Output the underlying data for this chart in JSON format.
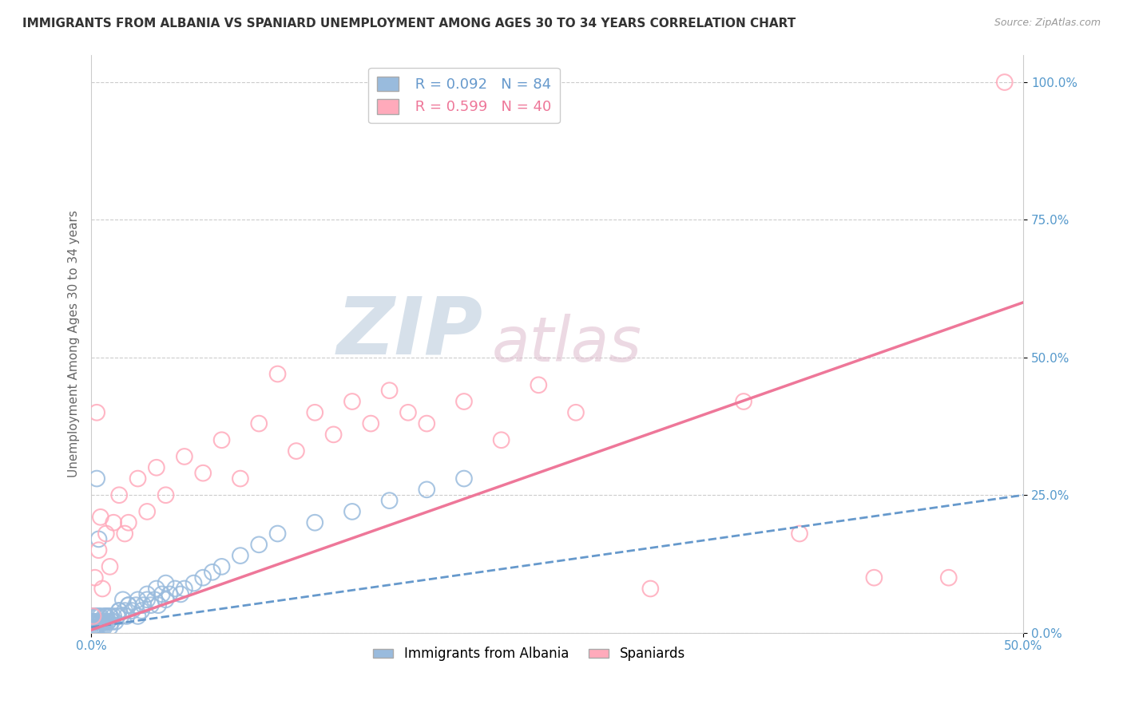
{
  "title": "IMMIGRANTS FROM ALBANIA VS SPANIARD UNEMPLOYMENT AMONG AGES 30 TO 34 YEARS CORRELATION CHART",
  "source": "Source: ZipAtlas.com",
  "ylabel": "Unemployment Among Ages 30 to 34 years",
  "xlim": [
    0.0,
    0.5
  ],
  "ylim": [
    0.0,
    1.05
  ],
  "albania_R": 0.092,
  "albania_N": 84,
  "spaniard_R": 0.599,
  "spaniard_N": 40,
  "albania_color": "#99BBDD",
  "spaniard_color": "#FFAABB",
  "albania_line_color": "#6699CC",
  "spaniard_line_color": "#EE7799",
  "tick_color": "#5599CC",
  "watermark_zip_color": "#BBCCDD",
  "watermark_atlas_color": "#DDBBCC",
  "background_color": "#FFFFFF",
  "title_fontsize": 11,
  "axis_label_fontsize": 11,
  "legend_fontsize": 13,
  "albania_x": [
    0.001,
    0.001,
    0.001,
    0.001,
    0.001,
    0.001,
    0.002,
    0.002,
    0.002,
    0.002,
    0.002,
    0.003,
    0.003,
    0.003,
    0.003,
    0.003,
    0.004,
    0.004,
    0.004,
    0.005,
    0.005,
    0.005,
    0.005,
    0.006,
    0.006,
    0.007,
    0.007,
    0.007,
    0.008,
    0.008,
    0.009,
    0.01,
    0.01,
    0.011,
    0.012,
    0.013,
    0.014,
    0.015,
    0.016,
    0.017,
    0.018,
    0.019,
    0.02,
    0.022,
    0.024,
    0.025,
    0.027,
    0.028,
    0.03,
    0.032,
    0.034,
    0.036,
    0.038,
    0.04,
    0.042,
    0.045,
    0.048,
    0.05,
    0.055,
    0.06,
    0.065,
    0.07,
    0.08,
    0.09,
    0.1,
    0.12,
    0.14,
    0.16,
    0.18,
    0.2,
    0.003,
    0.004,
    0.005,
    0.006,
    0.007,
    0.008,
    0.009,
    0.01,
    0.015,
    0.02,
    0.025,
    0.03,
    0.035,
    0.04
  ],
  "albania_y": [
    0.01,
    0.02,
    0.01,
    0.03,
    0.01,
    0.02,
    0.02,
    0.01,
    0.03,
    0.02,
    0.01,
    0.02,
    0.01,
    0.03,
    0.02,
    0.01,
    0.02,
    0.03,
    0.01,
    0.02,
    0.01,
    0.03,
    0.02,
    0.02,
    0.01,
    0.03,
    0.02,
    0.01,
    0.02,
    0.03,
    0.02,
    0.03,
    0.01,
    0.02,
    0.03,
    0.02,
    0.03,
    0.04,
    0.03,
    0.06,
    0.04,
    0.03,
    0.05,
    0.04,
    0.05,
    0.03,
    0.04,
    0.05,
    0.06,
    0.05,
    0.06,
    0.05,
    0.07,
    0.06,
    0.07,
    0.08,
    0.07,
    0.08,
    0.09,
    0.1,
    0.11,
    0.12,
    0.14,
    0.16,
    0.18,
    0.2,
    0.22,
    0.24,
    0.26,
    0.28,
    0.28,
    0.17,
    0.02,
    0.02,
    0.02,
    0.03,
    0.02,
    0.03,
    0.04,
    0.05,
    0.06,
    0.07,
    0.08,
    0.09
  ],
  "spaniard_x": [
    0.001,
    0.002,
    0.003,
    0.004,
    0.005,
    0.006,
    0.008,
    0.01,
    0.012,
    0.015,
    0.018,
    0.02,
    0.025,
    0.03,
    0.035,
    0.04,
    0.05,
    0.06,
    0.07,
    0.08,
    0.09,
    0.1,
    0.11,
    0.12,
    0.13,
    0.14,
    0.15,
    0.16,
    0.17,
    0.18,
    0.2,
    0.22,
    0.24,
    0.26,
    0.3,
    0.35,
    0.38,
    0.42,
    0.46,
    0.49
  ],
  "spaniard_y": [
    0.03,
    0.1,
    0.4,
    0.15,
    0.21,
    0.08,
    0.18,
    0.12,
    0.2,
    0.25,
    0.18,
    0.2,
    0.28,
    0.22,
    0.3,
    0.25,
    0.32,
    0.29,
    0.35,
    0.28,
    0.38,
    0.47,
    0.33,
    0.4,
    0.36,
    0.42,
    0.38,
    0.44,
    0.4,
    0.38,
    0.42,
    0.35,
    0.45,
    0.4,
    0.08,
    0.42,
    0.18,
    0.1,
    0.1,
    1.0
  ],
  "albania_trend": [
    0.01,
    0.25
  ],
  "spaniard_trend": [
    0.005,
    0.6
  ]
}
